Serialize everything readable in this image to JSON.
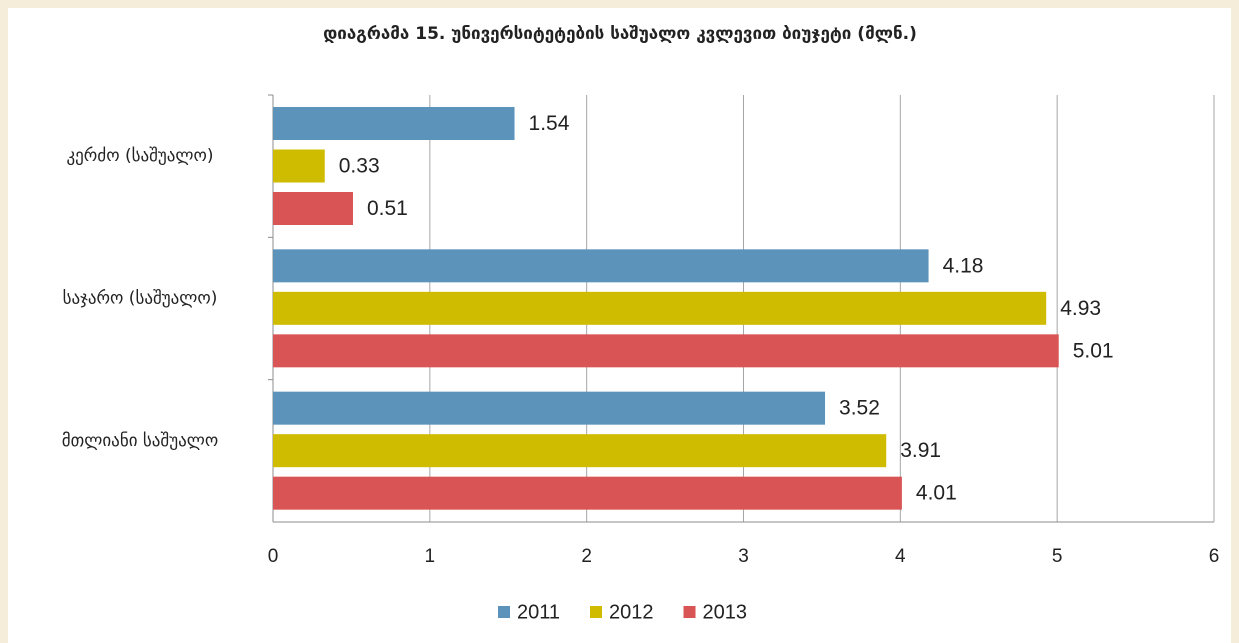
{
  "chart_data": {
    "type": "bar",
    "orientation": "horizontal",
    "title": "დიაგრამა 15. უნივერსიტეტების საშუალო კვლევით ბიუჯეტი (მლნ.)",
    "categories": [
      "კერძო (საშუალო)",
      "საჯარო (საშუალო)",
      "მთლიანი საშუალო"
    ],
    "series": [
      {
        "name": "2011",
        "color": "#5b93bb",
        "values": [
          1.54,
          4.18,
          3.52
        ]
      },
      {
        "name": "2012",
        "color": "#cfbc00",
        "values": [
          0.33,
          4.93,
          3.91
        ]
      },
      {
        "name": "2013",
        "color": "#d95555",
        "values": [
          0.51,
          5.01,
          4.01
        ]
      }
    ],
    "xlim": [
      0,
      6
    ],
    "xticks": [
      0,
      1,
      2,
      3,
      4,
      5,
      6
    ],
    "grid": true,
    "legend": "bottom"
  }
}
